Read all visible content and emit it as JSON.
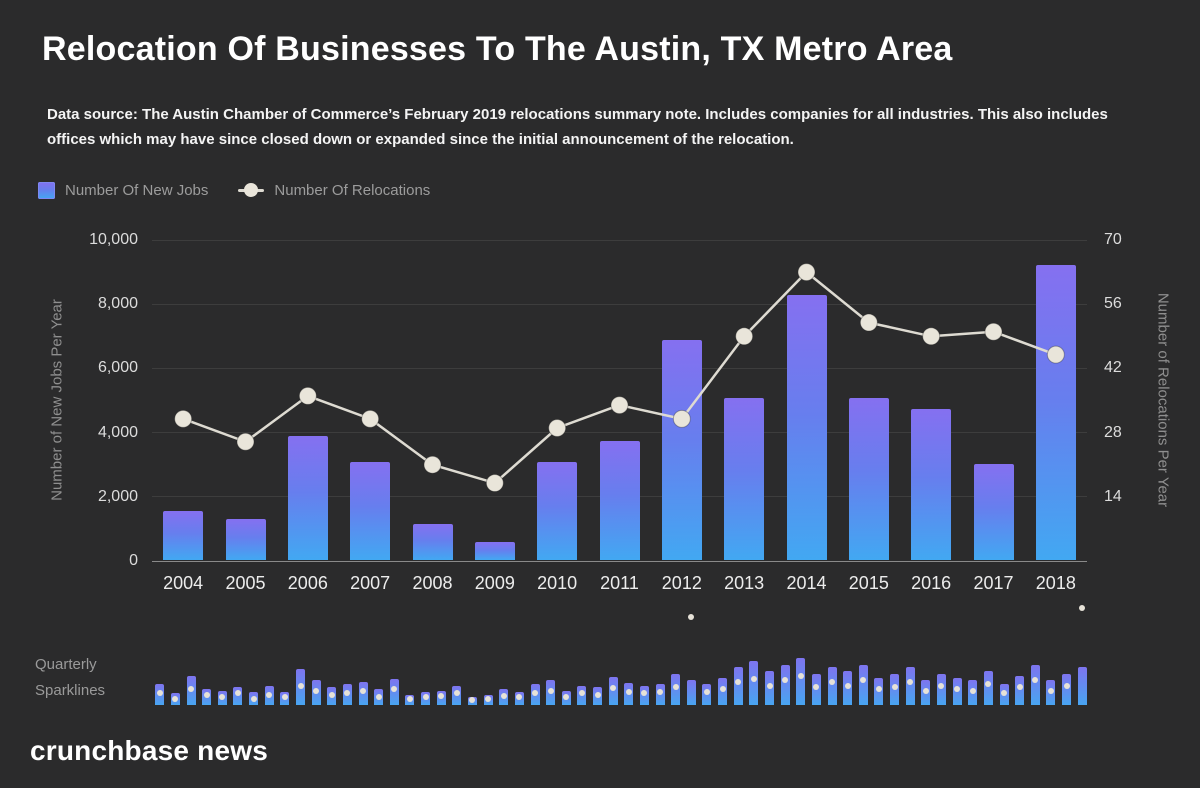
{
  "header": {
    "title": "Relocation Of Businesses To The Austin, TX Metro Area",
    "source_note": "Data source: The Austin Chamber of Commerce’s February 2019 relocations summary note. Includes companies for all industries. This also includes offices which may have since closed down or expanded since the initial announcement of the relocation."
  },
  "legend": {
    "jobs_label": "Number Of New Jobs",
    "relocations_label": "Number Of Relocations"
  },
  "chart_data": {
    "type": "bar+line",
    "title": "Relocation Of Businesses To The Austin, TX Metro Area",
    "categories": [
      "2004",
      "2005",
      "2006",
      "2007",
      "2008",
      "2009",
      "2010",
      "2011",
      "2012",
      "2013",
      "2014",
      "2015",
      "2016",
      "2017",
      "2018"
    ],
    "series": [
      {
        "name": "Number Of New Jobs",
        "type": "bar",
        "axis": "left",
        "values": [
          1530,
          1280,
          3850,
          3060,
          1130,
          560,
          3060,
          3700,
          6850,
          5050,
          8250,
          5050,
          4700,
          3000,
          9200
        ]
      },
      {
        "name": "Number Of Relocations",
        "type": "line",
        "axis": "right",
        "values": [
          31,
          26,
          36,
          31,
          21,
          17,
          29,
          34,
          31,
          49,
          63,
          52,
          49,
          50,
          45
        ]
      }
    ],
    "left_axis": {
      "label": "Number of New Jobs Per Year",
      "range": [
        0,
        10000
      ],
      "ticks": [
        {
          "value": 10000,
          "label": "10,000"
        },
        {
          "value": 8000,
          "label": "8,000"
        },
        {
          "value": 6000,
          "label": "6,000"
        },
        {
          "value": 4000,
          "label": "4,000"
        },
        {
          "value": 2000,
          "label": "2,000"
        },
        {
          "value": 0,
          "label": "0"
        }
      ]
    },
    "right_axis": {
      "label": "Number of Relocations Per Year",
      "range": [
        0,
        70
      ],
      "ticks": [
        {
          "value": 70,
          "label": "70"
        },
        {
          "value": 56,
          "label": "56"
        },
        {
          "value": 42,
          "label": "42"
        },
        {
          "value": 28,
          "label": "28"
        },
        {
          "value": 14,
          "label": "14"
        }
      ]
    },
    "grid": true,
    "legend_position": "top-left",
    "colors": {
      "bar_top": "#8570f0",
      "bar_bottom": "#42a8f2",
      "line": "#dedbd2",
      "marker": "#e9e5da",
      "background": "#2b2b2c"
    }
  },
  "sparklines": {
    "label": "Quarterly\nSparklines",
    "unit": "quarterly values, 4 per year 2004-2018, normalized 0-1 of sparkline height",
    "bars": [
      0.32,
      0.18,
      0.45,
      0.25,
      0.22,
      0.28,
      0.2,
      0.3,
      0.2,
      0.55,
      0.38,
      0.28,
      0.32,
      0.36,
      0.25,
      0.4,
      0.16,
      0.2,
      0.22,
      0.3,
      0.13,
      0.16,
      0.24,
      0.2,
      0.32,
      0.38,
      0.22,
      0.3,
      0.27,
      0.43,
      0.34,
      0.3,
      0.33,
      0.48,
      0.38,
      0.33,
      0.42,
      0.58,
      0.68,
      0.52,
      0.62,
      0.72,
      0.48,
      0.58,
      0.52,
      0.62,
      0.42,
      0.48,
      0.58,
      0.38,
      0.48,
      0.42,
      0.38,
      0.52,
      0.32,
      0.45,
      0.62,
      0.38,
      0.48,
      0.58
    ],
    "dots": [
      0.18,
      0.1,
      0.25,
      0.15,
      0.12,
      0.18,
      0.1,
      0.16,
      0.12,
      0.3,
      0.22,
      0.15,
      0.18,
      0.22,
      0.12,
      0.24,
      0.1,
      0.12,
      0.14,
      0.18,
      0.08,
      0.1,
      0.14,
      0.12,
      0.18,
      0.22,
      0.12,
      0.18,
      0.15,
      0.26,
      0.2,
      0.18,
      0.2,
      0.28,
      1.35,
      0.2,
      0.25,
      0.35,
      0.4,
      0.3,
      0.38,
      0.45,
      0.28,
      0.35,
      0.3,
      0.38,
      0.25,
      0.28,
      0.35,
      0.22,
      0.3,
      0.25,
      0.22,
      0.32,
      0.18,
      0.28,
      0.38,
      0.22,
      0.3,
      1.5
    ]
  },
  "footer": {
    "brand": "crunchbase news"
  }
}
